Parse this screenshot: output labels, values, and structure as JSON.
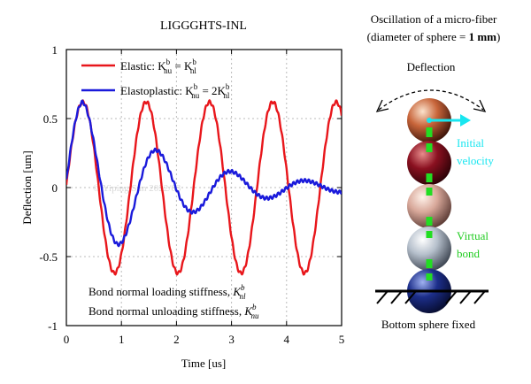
{
  "chart_data": {
    "type": "line",
    "title": "LIGGGHTS-INL",
    "xlabel": "Time [us]",
    "ylabel": "Deflection [um]",
    "xlim": [
      0,
      5
    ],
    "ylim": [
      -1,
      1
    ],
    "xticks": [
      "0",
      "1",
      "2",
      "3",
      "4",
      "5"
    ],
    "yticks": [
      "-1",
      "-0.5",
      "0",
      "0.5",
      "1"
    ],
    "grid": true,
    "legend_position": "top-left",
    "series": [
      {
        "name": "Elastic",
        "legend_text": "Elastic: K",
        "color": "#e8161b",
        "model": {
          "y0": 0.02,
          "amplitude": 0.62,
          "period_us": 1.15,
          "phase_peak_us": 0.3,
          "damping": 0.0
        }
      },
      {
        "name": "Elastoplastic",
        "legend_text": "Elastoplastic: K",
        "color": "#1a1adb",
        "model": {
          "y0": 0.05,
          "amplitude": 0.62,
          "period_us": 1.35,
          "phase_peak_us": 0.3,
          "damping": 0.62
        }
      }
    ],
    "legend_formulas": [
      {
        "lhs_sup": "b",
        "lhs_sub": "nu",
        "rhs_pre": "K",
        "rhs_sup": "b",
        "rhs_sub": "nl"
      },
      {
        "lhs_sup": "b",
        "lhs_sub": "nu",
        "rhs_pre": "2K",
        "rhs_sup": "b",
        "rhs_sub": "nl"
      }
    ],
    "annotations": [
      {
        "text": "Bond normal loading stiffness, ",
        "sym": "K",
        "sup": "b",
        "sub": "nl"
      },
      {
        "text": "Bond normal unloading stiffness, ",
        "sym": "K",
        "sup": "b",
        "sub": "nu"
      }
    ],
    "watermark": "© Yiping Sun 2022/03"
  },
  "diagram": {
    "title_line1": "Oscillation of a micro-fiber",
    "title_line2_pre": "(diameter of sphere = ",
    "title_line2_bold": "1 mm",
    "title_line2_post": ")",
    "deflection_label": "Deflection",
    "initial_velocity_line1": "Initial",
    "initial_velocity_line2": "velocity",
    "virtual_bond_line1": "Virtual",
    "virtual_bond_line2": "bond",
    "bottom_label": "Bottom sphere fixed",
    "colors": {
      "velocity": "#18e6f0",
      "bond": "#22dd22",
      "sphere1": "#c8653a",
      "sphere2": "#8a1020",
      "sphere3": "#d8a89a",
      "sphere4": "#b6c0cc",
      "sphere5": "#1c2e8a"
    }
  }
}
